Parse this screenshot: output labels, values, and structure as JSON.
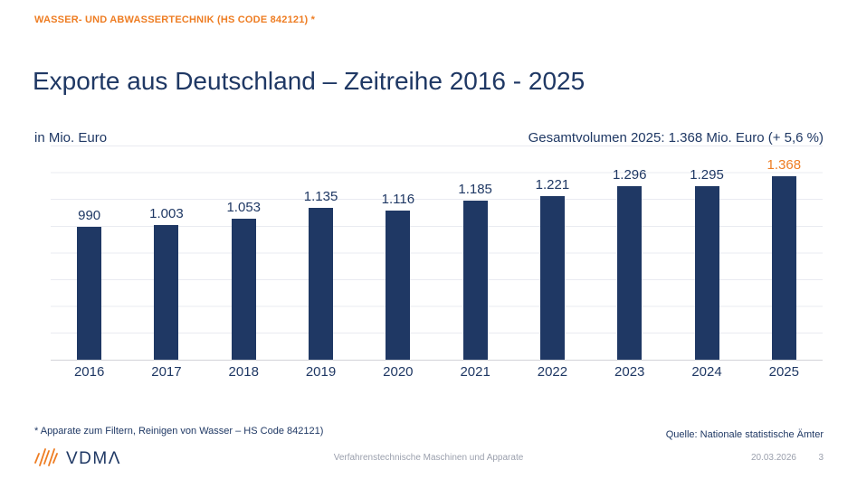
{
  "page": {
    "kicker": "WASSER- UND ABWASSERTECHNIK (HS CODE 842121) *",
    "title": "Exporte aus Deutschland – Zeitreihe 2016 - 2025",
    "unit_label": "in Mio. Euro",
    "total_label": "Gesamtvolumen 2025: 1.368 Mio. Euro (+ 5,6 %)"
  },
  "chart_data": {
    "type": "bar",
    "categories": [
      "2016",
      "2017",
      "2018",
      "2019",
      "2020",
      "2021",
      "2022",
      "2023",
      "2024",
      "2025"
    ],
    "values": [
      990,
      1003,
      1053,
      1135,
      1116,
      1185,
      1221,
      1296,
      1295,
      1368
    ],
    "value_labels": [
      "990",
      "1.003",
      "1.053",
      "1.135",
      "1.116",
      "1.185",
      "1.221",
      "1.296",
      "1.295",
      "1.368"
    ],
    "title": "Exporte aus Deutschland – Zeitreihe 2016 - 2025",
    "xlabel": "",
    "ylabel": "in Mio. Euro",
    "ylim": [
      0,
      1600
    ],
    "gridline_step": 200,
    "grid": true,
    "legend": false,
    "bar_color": "#1f3864",
    "highlight_index": 9,
    "highlight_label_color": "#ee7d23"
  },
  "footer": {
    "footnote": "* Apparate zum Filtern, Reinigen von Wasser – HS Code 842121)",
    "source": "Quelle: Nationale statistische Ämter",
    "center": "Verfahrenstechnische Maschinen und Apparate",
    "date": "20.03.2026",
    "page_number": "3",
    "logo_text": "VDMΛ"
  },
  "colors": {
    "accent_orange": "#ee7d23",
    "navy": "#1f3864",
    "footer_gray": "#9ba0ad",
    "gridline": "#e9ebf1"
  }
}
